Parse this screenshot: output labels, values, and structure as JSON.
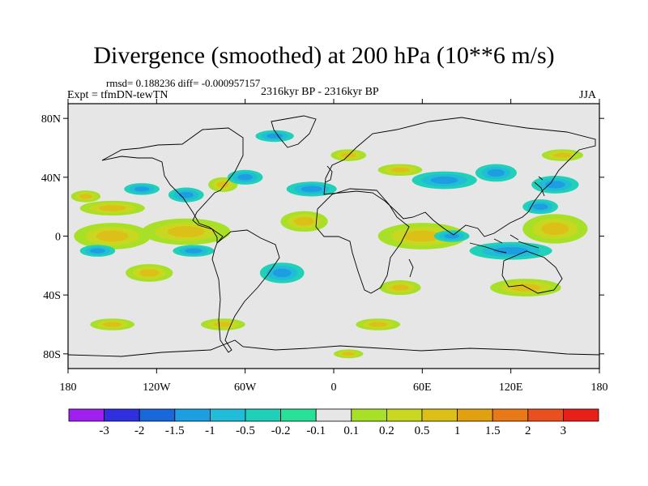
{
  "title": "Divergence (smoothed) at 200 hPa (10**6 m/s)",
  "stats": "rmsd= 0.188236 diff= -0.000957157",
  "expt": "Expt = tfmDN-tewTN",
  "period": "2316kyr BP - 2316kyr BP",
  "season": "JJA",
  "chart_data": {
    "type": "heatmap",
    "variable": "Divergence (smoothed) at 200 hPa",
    "units": "10**6 m/s",
    "season": "JJA",
    "x_range": [
      -180,
      180
    ],
    "y_range": [
      -90,
      90
    ],
    "xticks": [
      {
        "value": -180,
        "label": "180"
      },
      {
        "value": -120,
        "label": "120W"
      },
      {
        "value": -60,
        "label": "60W"
      },
      {
        "value": 0,
        "label": "0"
      },
      {
        "value": 60,
        "label": "60E"
      },
      {
        "value": 120,
        "label": "120E"
      },
      {
        "value": 180,
        "label": "180"
      }
    ],
    "yticks": [
      {
        "value": 80,
        "label": "80N"
      },
      {
        "value": 40,
        "label": "40N"
      },
      {
        "value": 0,
        "label": "0"
      },
      {
        "value": -40,
        "label": "40S"
      },
      {
        "value": -80,
        "label": "80S"
      }
    ],
    "colorbar": {
      "labels": [
        "-3",
        "-2",
        "-1.5",
        "-1",
        "-0.5",
        "-0.2",
        "-0.1",
        "0.1",
        "0.2",
        "0.5",
        "1",
        "1.5",
        "2",
        "3"
      ],
      "colors": [
        "#a020f0",
        "#3030e0",
        "#1868dc",
        "#1c9ee0",
        "#20bcd8",
        "#20d0b8",
        "#28e098",
        "#e6e6e6",
        "#a8e028",
        "#c8d820",
        "#dcc018",
        "#e0a010",
        "#e87818",
        "#e85020",
        "#e82018"
      ]
    },
    "regions": [
      {
        "kind": "pos",
        "lon": -168,
        "lat": 27,
        "rx": 10,
        "ry": 4
      },
      {
        "kind": "pos",
        "lon": -150,
        "lat": 19,
        "rx": 22,
        "ry": 5
      },
      {
        "kind": "neg",
        "lon": -130,
        "lat": 32,
        "rx": 12,
        "ry": 4
      },
      {
        "kind": "neg",
        "lon": -100,
        "lat": 28,
        "rx": 12,
        "ry": 5
      },
      {
        "kind": "pos",
        "lon": -75,
        "lat": 35,
        "rx": 10,
        "ry": 5
      },
      {
        "kind": "neg",
        "lon": -60,
        "lat": 40,
        "rx": 12,
        "ry": 5
      },
      {
        "kind": "neg",
        "lon": -40,
        "lat": 68,
        "rx": 13,
        "ry": 4
      },
      {
        "kind": "neg",
        "lon": -15,
        "lat": 32,
        "rx": 17,
        "ry": 5
      },
      {
        "kind": "pos",
        "lon": 10,
        "lat": 55,
        "rx": 12,
        "ry": 4
      },
      {
        "kind": "pos",
        "lon": 45,
        "lat": 45,
        "rx": 15,
        "ry": 4
      },
      {
        "kind": "neg",
        "lon": 75,
        "lat": 38,
        "rx": 22,
        "ry": 6
      },
      {
        "kind": "neg",
        "lon": 110,
        "lat": 43,
        "rx": 14,
        "ry": 6
      },
      {
        "kind": "pos",
        "lon": 155,
        "lat": 55,
        "rx": 14,
        "ry": 4
      },
      {
        "kind": "neg",
        "lon": 150,
        "lat": 35,
        "rx": 16,
        "ry": 6
      },
      {
        "kind": "neg",
        "lon": 140,
        "lat": 20,
        "rx": 12,
        "ry": 5
      },
      {
        "kind": "pos",
        "lon": -150,
        "lat": 0,
        "rx": 26,
        "ry": 9
      },
      {
        "kind": "pos",
        "lon": -100,
        "lat": 3,
        "rx": 30,
        "ry": 9
      },
      {
        "kind": "pos",
        "lon": -20,
        "lat": 10,
        "rx": 16,
        "ry": 7
      },
      {
        "kind": "pos",
        "lon": 60,
        "lat": 0,
        "rx": 30,
        "ry": 9
      },
      {
        "kind": "pos",
        "lon": 150,
        "lat": 5,
        "rx": 22,
        "ry": 10
      },
      {
        "kind": "neg",
        "lon": -160,
        "lat": -10,
        "rx": 12,
        "ry": 4
      },
      {
        "kind": "neg",
        "lon": -95,
        "lat": -10,
        "rx": 14,
        "ry": 4
      },
      {
        "kind": "neg",
        "lon": 80,
        "lat": 0,
        "rx": 12,
        "ry": 4
      },
      {
        "kind": "neg",
        "lon": 120,
        "lat": -10,
        "rx": 28,
        "ry": 6
      },
      {
        "kind": "neg",
        "lon": -35,
        "lat": -25,
        "rx": 15,
        "ry": 7
      },
      {
        "kind": "pos",
        "lon": 45,
        "lat": -35,
        "rx": 14,
        "ry": 5
      },
      {
        "kind": "pos",
        "lon": 130,
        "lat": -35,
        "rx": 24,
        "ry": 6
      },
      {
        "kind": "pos",
        "lon": -125,
        "lat": -25,
        "rx": 16,
        "ry": 6
      },
      {
        "kind": "pos",
        "lon": -150,
        "lat": -60,
        "rx": 15,
        "ry": 4
      },
      {
        "kind": "pos",
        "lon": -75,
        "lat": -60,
        "rx": 15,
        "ry": 4
      },
      {
        "kind": "pos",
        "lon": 30,
        "lat": -60,
        "rx": 15,
        "ry": 4
      },
      {
        "kind": "pos",
        "lon": 10,
        "lat": -80,
        "rx": 10,
        "ry": 3
      }
    ]
  }
}
